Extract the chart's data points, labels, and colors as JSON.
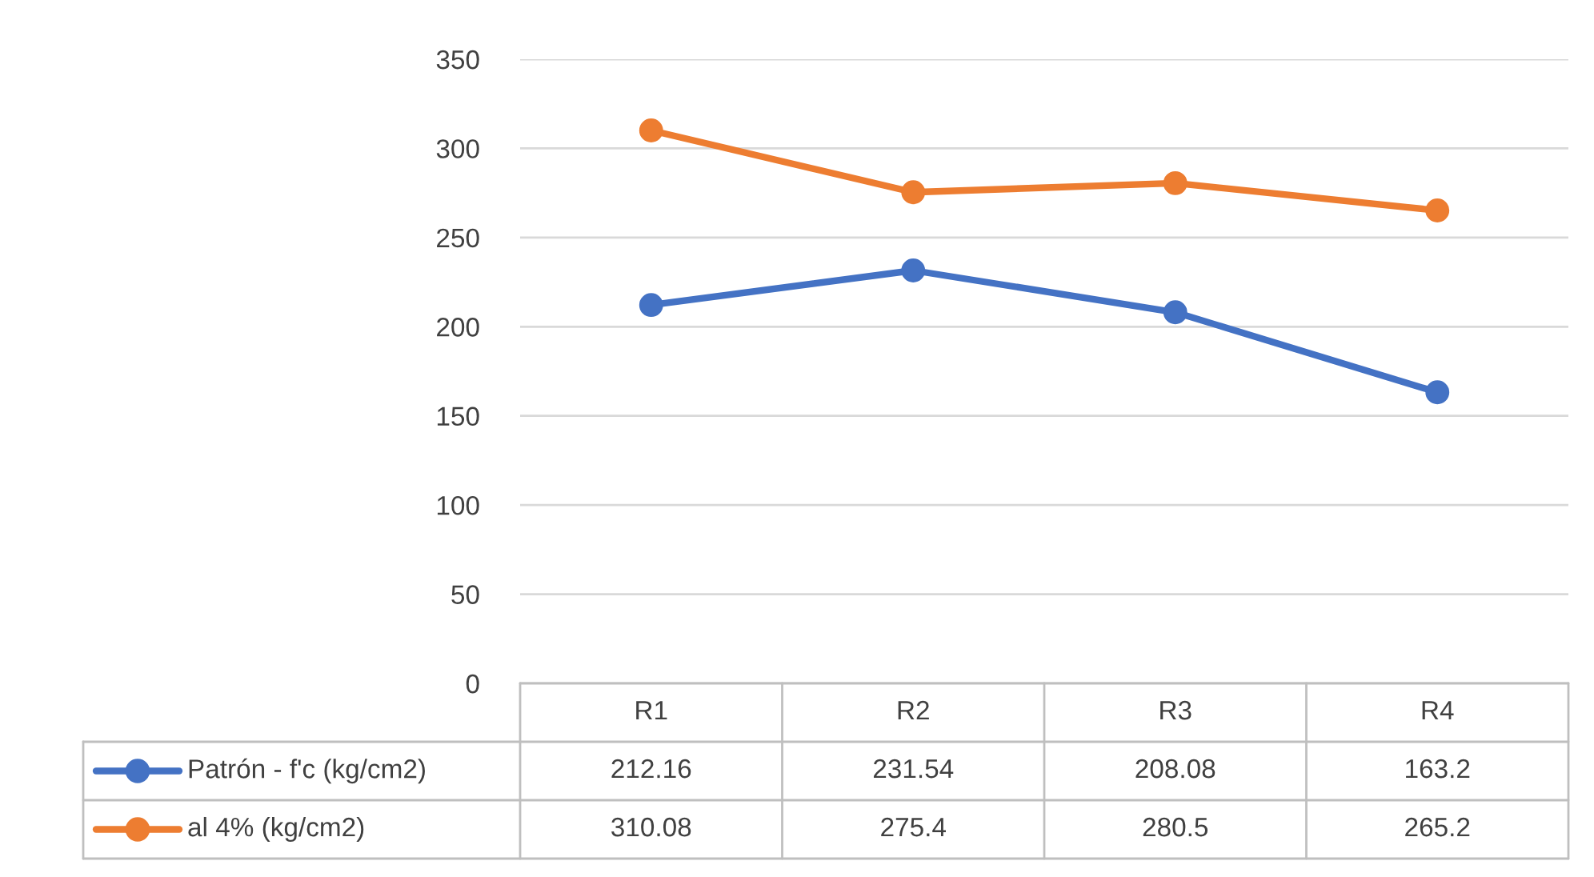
{
  "chart_data": {
    "type": "line",
    "categories": [
      "R1",
      "R2",
      "R3",
      "R4"
    ],
    "series": [
      {
        "name": "Patrón - f'c (kg/cm2)",
        "color": "#4472c4",
        "values": [
          212.16,
          231.54,
          208.08,
          163.2
        ]
      },
      {
        "name": "al 4% (kg/cm2)",
        "color": "#ed7d31",
        "values": [
          310.08,
          275.4,
          280.5,
          265.2
        ]
      }
    ],
    "ylim": [
      0,
      350
    ],
    "yticks": [
      0,
      50,
      100,
      150,
      200,
      250,
      300,
      350
    ],
    "grid": "y",
    "marker": "circle",
    "line_style": "solid",
    "legend": "bottom",
    "data_labels": true
  }
}
